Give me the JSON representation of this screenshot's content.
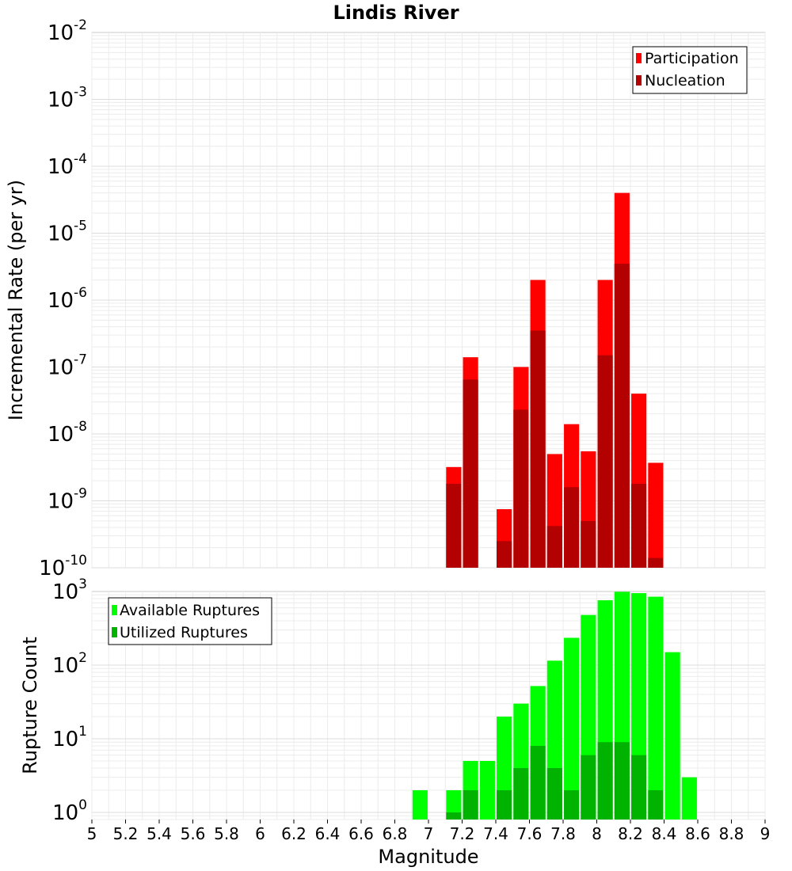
{
  "chart_data": [
    {
      "type": "bar",
      "title": "Lindis River",
      "xlabel": "",
      "ylabel": "Incremental Rate (per yr)",
      "xlim": [
        5,
        9
      ],
      "ylim": [
        1e-10,
        0.01
      ],
      "yscale": "log",
      "grid": true,
      "legend_position": "top-right",
      "y_ticks": [
        {
          "base": "10",
          "exp": "-10",
          "value": 1e-10
        },
        {
          "base": "10",
          "exp": "-9",
          "value": 1e-09
        },
        {
          "base": "10",
          "exp": "-8",
          "value": 1e-08
        },
        {
          "base": "10",
          "exp": "-7",
          "value": 1e-07
        },
        {
          "base": "10",
          "exp": "-6",
          "value": 1e-06
        },
        {
          "base": "10",
          "exp": "-5",
          "value": 1e-05
        },
        {
          "base": "10",
          "exp": "-4",
          "value": 0.0001
        },
        {
          "base": "10",
          "exp": "-3",
          "value": 0.001
        },
        {
          "base": "10",
          "exp": "-2",
          "value": 0.01
        }
      ],
      "series": [
        {
          "name": "Participation",
          "color": "#ff0000",
          "points": [
            {
              "x": 7.15,
              "y": 3.2e-09
            },
            {
              "x": 7.25,
              "y": 1.4e-07
            },
            {
              "x": 7.45,
              "y": 7.5e-10
            },
            {
              "x": 7.55,
              "y": 1e-07
            },
            {
              "x": 7.65,
              "y": 2e-06
            },
            {
              "x": 7.75,
              "y": 5e-09
            },
            {
              "x": 7.85,
              "y": 1.4e-08
            },
            {
              "x": 7.95,
              "y": 5.5e-09
            },
            {
              "x": 8.05,
              "y": 2e-06
            },
            {
              "x": 8.15,
              "y": 4e-05
            },
            {
              "x": 8.25,
              "y": 4e-08
            },
            {
              "x": 8.35,
              "y": 3.7e-09
            }
          ]
        },
        {
          "name": "Nucleation",
          "color": "#b30000",
          "points": [
            {
              "x": 7.15,
              "y": 1.8e-09
            },
            {
              "x": 7.25,
              "y": 6.5e-08
            },
            {
              "x": 7.45,
              "y": 2.5e-10
            },
            {
              "x": 7.55,
              "y": 2.3e-08
            },
            {
              "x": 7.65,
              "y": 3.5e-07
            },
            {
              "x": 7.75,
              "y": 4.2e-10
            },
            {
              "x": 7.85,
              "y": 1.6e-09
            },
            {
              "x": 7.95,
              "y": 5e-10
            },
            {
              "x": 8.05,
              "y": 1.5e-07
            },
            {
              "x": 8.15,
              "y": 3.5e-06
            },
            {
              "x": 8.25,
              "y": 1.8e-09
            },
            {
              "x": 8.35,
              "y": 1.4e-10
            }
          ]
        }
      ]
    },
    {
      "type": "bar",
      "title": "",
      "xlabel": "Magnitude",
      "ylabel": "Rupture Count",
      "xlim": [
        5,
        9
      ],
      "ylim": [
        0.8,
        1000
      ],
      "yscale": "log",
      "grid": true,
      "legend_position": "top-left",
      "x_ticks": [
        "5",
        "5.2",
        "5.4",
        "5.6",
        "5.8",
        "6",
        "6.2",
        "6.4",
        "6.6",
        "6.8",
        "7",
        "7.2",
        "7.4",
        "7.6",
        "7.8",
        "8",
        "8.2",
        "8.4",
        "8.6",
        "8.8",
        "9"
      ],
      "y_ticks": [
        {
          "base": "10",
          "exp": "0",
          "value": 1
        },
        {
          "base": "10",
          "exp": "1",
          "value": 10
        },
        {
          "base": "10",
          "exp": "2",
          "value": 100
        },
        {
          "base": "10",
          "exp": "3",
          "value": 1000
        }
      ],
      "series": [
        {
          "name": "Available Ruptures",
          "color": "#00ff00",
          "points": [
            {
              "x": 6.95,
              "y": 2
            },
            {
              "x": 7.15,
              "y": 2
            },
            {
              "x": 7.25,
              "y": 5
            },
            {
              "x": 7.35,
              "y": 5
            },
            {
              "x": 7.45,
              "y": 20
            },
            {
              "x": 7.55,
              "y": 30
            },
            {
              "x": 7.65,
              "y": 52
            },
            {
              "x": 7.75,
              "y": 115
            },
            {
              "x": 7.85,
              "y": 235
            },
            {
              "x": 7.95,
              "y": 480
            },
            {
              "x": 8.05,
              "y": 760
            },
            {
              "x": 8.15,
              "y": 990
            },
            {
              "x": 8.25,
              "y": 950
            },
            {
              "x": 8.35,
              "y": 850
            },
            {
              "x": 8.45,
              "y": 150
            },
            {
              "x": 8.55,
              "y": 3
            }
          ]
        },
        {
          "name": "Utilized Ruptures",
          "color": "#00b300",
          "points": [
            {
              "x": 7.15,
              "y": 1
            },
            {
              "x": 7.25,
              "y": 2
            },
            {
              "x": 7.45,
              "y": 2
            },
            {
              "x": 7.55,
              "y": 4
            },
            {
              "x": 7.65,
              "y": 8
            },
            {
              "x": 7.75,
              "y": 4
            },
            {
              "x": 7.85,
              "y": 2
            },
            {
              "x": 7.95,
              "y": 6
            },
            {
              "x": 8.05,
              "y": 9
            },
            {
              "x": 8.15,
              "y": 9
            },
            {
              "x": 8.25,
              "y": 6
            },
            {
              "x": 8.35,
              "y": 2
            }
          ]
        }
      ]
    }
  ]
}
